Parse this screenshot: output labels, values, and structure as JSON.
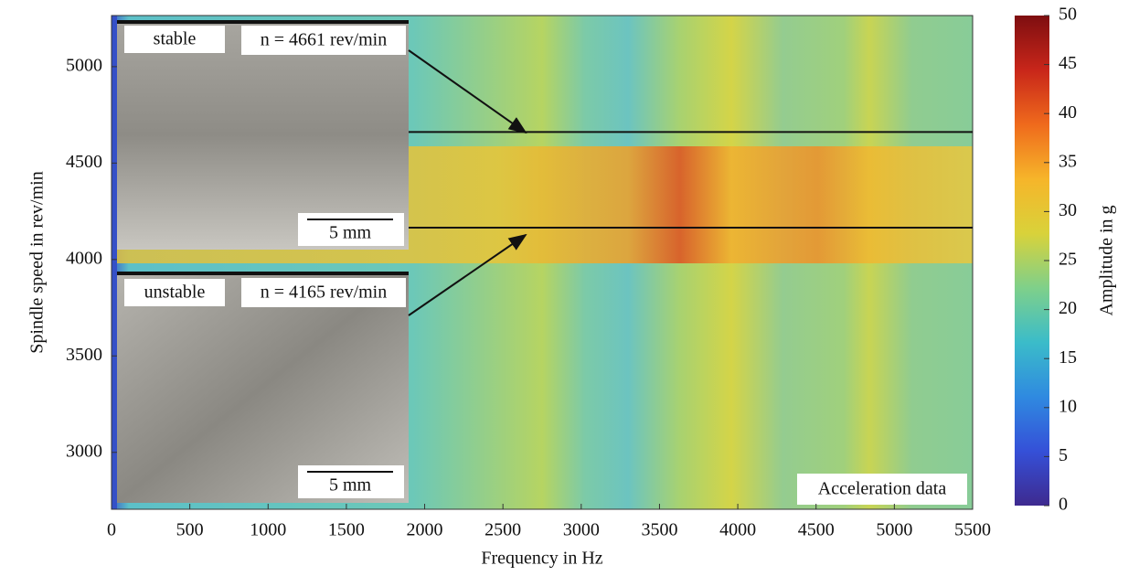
{
  "chart_data": {
    "type": "heatmap",
    "xlabel": "Frequency in Hz",
    "ylabel": "Spindle speed in rev/min",
    "xlim": [
      0,
      5500
    ],
    "xticks": [
      0,
      500,
      1000,
      1500,
      2000,
      2500,
      3000,
      3500,
      4000,
      4500,
      5000,
      5500
    ],
    "ylim": [
      2705,
      5265
    ],
    "yticks": [
      3000,
      3500,
      4000,
      4500,
      5000
    ],
    "colorbar": {
      "label": "Amplitude in g",
      "lim": [
        0,
        50
      ],
      "ticks": [
        0,
        5,
        10,
        15,
        20,
        25,
        30,
        35,
        40,
        45,
        50
      ],
      "colors": [
        "#3e2a8f",
        "#3550d8",
        "#2f8ae0",
        "#3bbcc9",
        "#7fd08a",
        "#d9d23a",
        "#f6b52a",
        "#ef6a1c",
        "#c8261a",
        "#7e0e10"
      ]
    },
    "reference_lines": [
      {
        "value": 4661,
        "label": "n = 4661 rev/min",
        "state": "stable",
        "scale": "5 mm"
      },
      {
        "value": 4165,
        "label": "n = 4165 rev/min",
        "state": "unstable",
        "scale": "5 mm"
      }
    ],
    "annotation": "Acceleration data"
  }
}
